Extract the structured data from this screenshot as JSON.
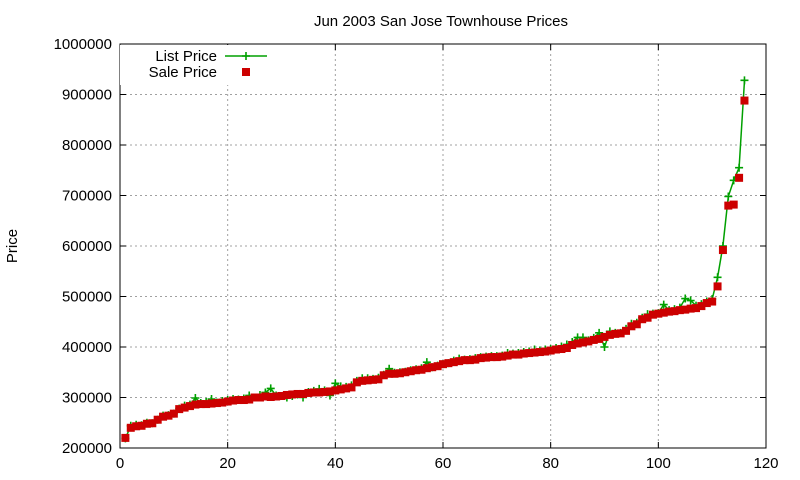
{
  "chart_data": {
    "type": "line",
    "title": "Jun 2003 San Jose Townhouse Prices",
    "xlabel": "",
    "ylabel": "Price",
    "xlim": [
      0,
      120
    ],
    "ylim": [
      200000,
      1000000
    ],
    "x_ticks": [
      0,
      20,
      40,
      60,
      80,
      100,
      120
    ],
    "y_ticks": [
      200000,
      300000,
      400000,
      500000,
      600000,
      700000,
      800000,
      900000,
      1000000
    ],
    "grid": true,
    "legend_position": "top-left",
    "colors": {
      "list": "#00a000",
      "sale": "#cc0000",
      "grid": "#a0a0a0"
    },
    "series": [
      {
        "name": "List Price",
        "marker": "plus",
        "line": true,
        "points": [
          [
            1,
            219000
          ],
          [
            2,
            244000
          ],
          [
            3,
            246000
          ],
          [
            4,
            245000
          ],
          [
            5,
            250000
          ],
          [
            6,
            249000
          ],
          [
            7,
            256000
          ],
          [
            8,
            264000
          ],
          [
            9,
            265000
          ],
          [
            10,
            268000
          ],
          [
            11,
            278000
          ],
          [
            12,
            284000
          ],
          [
            13,
            286000
          ],
          [
            14,
            299000
          ],
          [
            15,
            289000
          ],
          [
            16,
            291000
          ],
          [
            17,
            297000
          ],
          [
            18,
            290000
          ],
          [
            19,
            293000
          ],
          [
            20,
            295000
          ],
          [
            21,
            297000
          ],
          [
            22,
            296000
          ],
          [
            23,
            298000
          ],
          [
            24,
            304000
          ],
          [
            25,
            300000
          ],
          [
            26,
            305000
          ],
          [
            27,
            310000
          ],
          [
            28,
            318000
          ],
          [
            29,
            304000
          ],
          [
            30,
            303000
          ],
          [
            31,
            300000
          ],
          [
            32,
            303000
          ],
          [
            33,
            306000
          ],
          [
            34,
            300000
          ],
          [
            35,
            311000
          ],
          [
            36,
            313000
          ],
          [
            37,
            317000
          ],
          [
            38,
            314000
          ],
          [
            39,
            304000
          ],
          [
            40,
            328000
          ],
          [
            41,
            322000
          ],
          [
            42,
            321000
          ],
          [
            43,
            324000
          ],
          [
            44,
            333000
          ],
          [
            45,
            338000
          ],
          [
            46,
            338000
          ],
          [
            47,
            337000
          ],
          [
            48,
            339000
          ],
          [
            49,
            345000
          ],
          [
            50,
            357000
          ],
          [
            51,
            349000
          ],
          [
            52,
            350000
          ],
          [
            53,
            351000
          ],
          [
            54,
            354000
          ],
          [
            55,
            356000
          ],
          [
            56,
            358000
          ],
          [
            57,
            370000
          ],
          [
            58,
            360000
          ],
          [
            59,
            363000
          ],
          [
            60,
            366000
          ],
          [
            61,
            368000
          ],
          [
            62,
            373000
          ],
          [
            63,
            377000
          ],
          [
            64,
            375000
          ],
          [
            65,
            376000
          ],
          [
            66,
            378000
          ],
          [
            67,
            380000
          ],
          [
            68,
            381000
          ],
          [
            69,
            382000
          ],
          [
            70,
            382000
          ],
          [
            71,
            383000
          ],
          [
            72,
            388000
          ],
          [
            73,
            387000
          ],
          [
            74,
            388000
          ],
          [
            75,
            390000
          ],
          [
            76,
            391000
          ],
          [
            77,
            395000
          ],
          [
            78,
            393000
          ],
          [
            79,
            395000
          ],
          [
            80,
            396000
          ],
          [
            81,
            398000
          ],
          [
            82,
            401000
          ],
          [
            83,
            405000
          ],
          [
            84,
            410000
          ],
          [
            85,
            419000
          ],
          [
            86,
            419000
          ],
          [
            87,
            413000
          ],
          [
            88,
            418000
          ],
          [
            89,
            428000
          ],
          [
            90,
            400000
          ],
          [
            91,
            431000
          ],
          [
            92,
            428000
          ],
          [
            93,
            428000
          ],
          [
            94,
            436000
          ],
          [
            95,
            446000
          ],
          [
            96,
            448000
          ],
          [
            97,
            458000
          ],
          [
            98,
            465000
          ],
          [
            99,
            466000
          ],
          [
            100,
            467000
          ],
          [
            101,
            484000
          ],
          [
            102,
            473000
          ],
          [
            103,
            475000
          ],
          [
            104,
            478000
          ],
          [
            105,
            496000
          ],
          [
            106,
            492000
          ],
          [
            107,
            482000
          ],
          [
            108,
            485000
          ],
          [
            109,
            490000
          ],
          [
            110,
            495000
          ],
          [
            111,
            538000
          ],
          [
            112,
            600000
          ],
          [
            113,
            698000
          ],
          [
            114,
            730000
          ],
          [
            115,
            755000
          ],
          [
            116,
            928000
          ]
        ]
      },
      {
        "name": "Sale Price",
        "marker": "square",
        "line": false,
        "points": [
          [
            1,
            220000
          ],
          [
            2,
            240000
          ],
          [
            3,
            243000
          ],
          [
            4,
            244000
          ],
          [
            5,
            248000
          ],
          [
            6,
            249000
          ],
          [
            7,
            256000
          ],
          [
            8,
            262000
          ],
          [
            9,
            264000
          ],
          [
            10,
            268000
          ],
          [
            11,
            277000
          ],
          [
            12,
            280000
          ],
          [
            13,
            283000
          ],
          [
            14,
            286000
          ],
          [
            15,
            287000
          ],
          [
            16,
            287000
          ],
          [
            17,
            288000
          ],
          [
            18,
            289000
          ],
          [
            19,
            290000
          ],
          [
            20,
            292000
          ],
          [
            21,
            294000
          ],
          [
            22,
            295000
          ],
          [
            23,
            295000
          ],
          [
            24,
            296000
          ],
          [
            25,
            300000
          ],
          [
            26,
            300000
          ],
          [
            27,
            302000
          ],
          [
            28,
            301000
          ],
          [
            29,
            302000
          ],
          [
            30,
            303000
          ],
          [
            31,
            305000
          ],
          [
            32,
            306000
          ],
          [
            33,
            307000
          ],
          [
            34,
            307000
          ],
          [
            35,
            309000
          ],
          [
            36,
            310000
          ],
          [
            37,
            310000
          ],
          [
            38,
            311000
          ],
          [
            39,
            312000
          ],
          [
            40,
            314000
          ],
          [
            41,
            316000
          ],
          [
            42,
            318000
          ],
          [
            43,
            320000
          ],
          [
            44,
            330000
          ],
          [
            45,
            333000
          ],
          [
            46,
            334000
          ],
          [
            47,
            335000
          ],
          [
            48,
            336000
          ],
          [
            49,
            344000
          ],
          [
            50,
            347000
          ],
          [
            51,
            347000
          ],
          [
            52,
            348000
          ],
          [
            53,
            350000
          ],
          [
            54,
            352000
          ],
          [
            55,
            354000
          ],
          [
            56,
            355000
          ],
          [
            57,
            358000
          ],
          [
            58,
            360000
          ],
          [
            59,
            362000
          ],
          [
            60,
            366000
          ],
          [
            61,
            368000
          ],
          [
            62,
            370000
          ],
          [
            63,
            372000
          ],
          [
            64,
            374000
          ],
          [
            65,
            374000
          ],
          [
            66,
            375000
          ],
          [
            67,
            378000
          ],
          [
            68,
            379000
          ],
          [
            69,
            380000
          ],
          [
            70,
            380000
          ],
          [
            71,
            381000
          ],
          [
            72,
            383000
          ],
          [
            73,
            385000
          ],
          [
            74,
            385000
          ],
          [
            75,
            387000
          ],
          [
            76,
            388000
          ],
          [
            77,
            389000
          ],
          [
            78,
            390000
          ],
          [
            79,
            391000
          ],
          [
            80,
            393000
          ],
          [
            81,
            395000
          ],
          [
            82,
            396000
          ],
          [
            83,
            398000
          ],
          [
            84,
            404000
          ],
          [
            85,
            407000
          ],
          [
            86,
            409000
          ],
          [
            87,
            411000
          ],
          [
            88,
            414000
          ],
          [
            89,
            416000
          ],
          [
            90,
            420000
          ],
          [
            91,
            424000
          ],
          [
            92,
            426000
          ],
          [
            93,
            427000
          ],
          [
            94,
            432000
          ],
          [
            95,
            441000
          ],
          [
            96,
            445000
          ],
          [
            97,
            455000
          ],
          [
            98,
            458000
          ],
          [
            99,
            464000
          ],
          [
            100,
            466000
          ],
          [
            101,
            468000
          ],
          [
            102,
            470000
          ],
          [
            103,
            471000
          ],
          [
            104,
            473000
          ],
          [
            105,
            474000
          ],
          [
            106,
            476000
          ],
          [
            107,
            477000
          ],
          [
            108,
            481000
          ],
          [
            109,
            487000
          ],
          [
            110,
            490000
          ],
          [
            111,
            520000
          ],
          [
            112,
            592000
          ],
          [
            113,
            680000
          ],
          [
            114,
            682000
          ],
          [
            115,
            735000
          ],
          [
            116,
            888000
          ]
        ]
      }
    ]
  }
}
